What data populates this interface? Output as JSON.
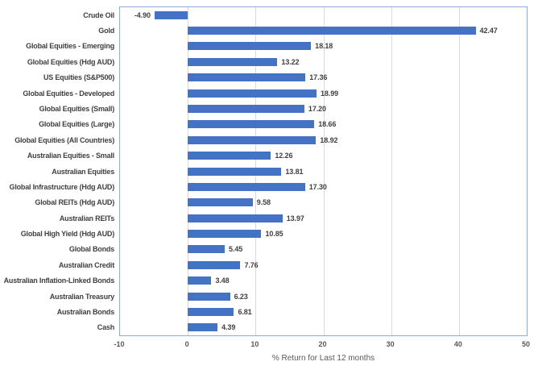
{
  "chart_data": {
    "type": "bar",
    "orientation": "horizontal",
    "title": "",
    "xlabel": "% Return for Last 12 months",
    "ylabel": "",
    "xlim": [
      -10,
      50
    ],
    "x_ticks": [
      -10,
      0,
      10,
      20,
      30,
      40,
      50
    ],
    "x_tick_labels": [
      "-10",
      "0",
      "10",
      "20",
      "30",
      "40",
      "50"
    ],
    "grid": true,
    "legend": false,
    "categories": [
      "Crude Oil",
      "Gold",
      "Global Equities - Emerging",
      "Global Equities (Hdg AUD)",
      "US Equities (S&P500)",
      "Global Equities - Developed",
      "Global Equities (Small)",
      "Global Equities (Large)",
      "Global Equities (All Countries)",
      "Australian Equities - Small",
      "Australian Equities",
      "Global Infrastructure (Hdg AUD)",
      "Global REITs (Hdg AUD)",
      "Australian REITs",
      "Global High Yield (Hdg AUD)",
      "Global Bonds",
      "Australian Credit",
      "Australian Inflation-Linked Bonds",
      "Australian Treasury",
      "Australian Bonds",
      "Cash"
    ],
    "values": [
      -4.9,
      42.47,
      18.18,
      13.22,
      17.36,
      18.99,
      17.2,
      18.66,
      18.92,
      12.26,
      13.81,
      17.3,
      9.58,
      13.97,
      10.85,
      5.45,
      7.76,
      3.48,
      6.23,
      6.81,
      4.39
    ],
    "value_labels": [
      "-4.90",
      "42.47",
      "18.18",
      "13.22",
      "17.36",
      "18.99",
      "17.20",
      "18.66",
      "18.92",
      "12.26",
      "13.81",
      "17.30",
      "9.58",
      "13.97",
      "10.85",
      "5.45",
      "7.76",
      "3.48",
      "6.23",
      "6.81",
      "4.39"
    ],
    "colors": {
      "bar_fill": "#4472C4",
      "plot_border": "#8FAADC",
      "gridline": "#D9D9D9"
    }
  }
}
